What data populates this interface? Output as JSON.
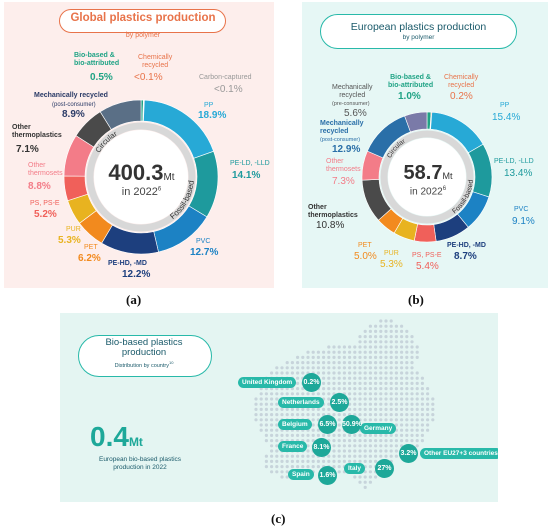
{
  "colors": {
    "brand_orange": "#e8734a",
    "brand_teal": "#28b9a9",
    "text_dark": "#2a3a4a"
  },
  "panel_a": {
    "title": "Global plastics production",
    "subtitle": "by polymer",
    "center_value": "400.3",
    "center_unit": "Mt",
    "center_sub": "in 2022",
    "center_sup": "6",
    "ring_labels": {
      "circular": "Circular",
      "fossil": "Fossil-based"
    },
    "caption": "(a)",
    "labels": {
      "biobased": "Bio-based &\nbio-attributed",
      "biobased_val": "0.5%",
      "chem": "Chemically\nrecycled",
      "chem_val": "<0.1%",
      "carbon": "Carbon-captured",
      "carbon_val": "<0.1%",
      "mech": "Mechanically recycled",
      "mech_sub": "(post-consumer)",
      "mech_val": "8.9%",
      "pp": "PP",
      "pp_val": "18.9%",
      "other_tp": "Other\nthermoplastics",
      "other_tp_val": "7.1%",
      "other_ts": "Other\nthermosets",
      "other_ts_val": "8.8%",
      "pell": "PE-LD, -LLD",
      "pell_val": "14.1%",
      "ps": "PS, PS-E",
      "ps_val": "5.2%",
      "pur": "PUR",
      "pur_val": "5.3%",
      "pet": "PET",
      "pet_val": "6.2%",
      "pvc": "PVC",
      "pvc_val": "12.7%",
      "pehd": "PE-HD, -MD",
      "pehd_val": "12.2%"
    }
  },
  "panel_b": {
    "title": "European plastics production",
    "subtitle": "by polymer",
    "center_value": "58.7",
    "center_unit": "Mt",
    "center_sub": "in 2022",
    "center_sup": "6",
    "ring_labels": {
      "circular": "Circular",
      "fossil": "Fossil-based"
    },
    "caption": "(b)",
    "labels": {
      "biobased": "Bio-based &\nbio-attributed",
      "biobased_val": "1.0%",
      "chem": "Chemically\nrecycled",
      "chem_val": "0.2%",
      "mech_pre": "Mechanically\nrecycled",
      "mech_pre_sub": "(pre-consumer)",
      "mech_pre_val": "5.6%",
      "pp": "PP",
      "pp_val": "15.4%",
      "mech_post": "Mechanically\nrecycled",
      "mech_post_sub": "(post-consumer)",
      "mech_post_val": "12.9%",
      "pell": "PE-LD, -LLD",
      "pell_val": "13.4%",
      "other_ts": "Other\nthermosets",
      "other_ts_val": "7.3%",
      "pvc": "PVC",
      "pvc_val": "9.1%",
      "other_tp": "Other\nthermoplastics",
      "other_tp_val": "10.8%",
      "pet": "PET",
      "pet_val": "5.0%",
      "pur": "PUR",
      "pur_val": "5.3%",
      "ps": "PS, PS-E",
      "ps_val": "5.4%",
      "pehd": "PE-HD, -MD",
      "pehd_val": "8.7%"
    }
  },
  "panel_c": {
    "title": "Bio-based plastics\nproduction",
    "subtitle": "Distribution by country",
    "subtitle_sup": "10",
    "big_value": "0.4",
    "big_unit": "Mt",
    "desc": "European bio-based plastics\nproduction in 2022",
    "caption": "(c)"
  },
  "chart_data": [
    {
      "type": "pie",
      "title": "Global plastics production",
      "subtitle": "by polymer",
      "total": "400.3 Mt in 2022",
      "categories": [
        "Bio-based & bio-attributed",
        "Chemically recycled",
        "Carbon-captured",
        "PP",
        "PE-LD, -LLD",
        "PVC",
        "PE-HD, -MD",
        "PET",
        "PUR",
        "PS, PS-E",
        "Other thermosets",
        "Other thermoplastics",
        "Mechanically recycled (post-consumer)"
      ],
      "values": [
        0.5,
        0.1,
        0.1,
        18.9,
        14.1,
        12.7,
        12.2,
        6.2,
        5.3,
        5.2,
        8.8,
        7.1,
        8.9
      ],
      "value_labels": [
        "0.5%",
        "<0.1%",
        "<0.1%",
        "18.9%",
        "14.1%",
        "12.7%",
        "12.2%",
        "6.2%",
        "5.3%",
        "5.2%",
        "8.8%",
        "7.1%",
        "8.9%"
      ],
      "colors": [
        "#1fa385",
        "#e8734a",
        "#b9b9b9",
        "#27a9d6",
        "#1e9a9d",
        "#1c82c4",
        "#1d3f7e",
        "#f28a1e",
        "#e8b320",
        "#f0605a",
        "#f37c88",
        "#4a4a4a",
        "#5a6f86"
      ]
    },
    {
      "type": "pie",
      "title": "European plastics production",
      "subtitle": "by polymer",
      "total": "58.7 Mt in 2022",
      "categories": [
        "Bio-based & bio-attributed",
        "Chemically recycled",
        "PP",
        "PE-LD, -LLD",
        "PVC",
        "PE-HD, -MD",
        "PS, PS-E",
        "PUR",
        "PET",
        "Other thermoplastics",
        "Other thermosets",
        "Mechanically recycled (post-consumer)",
        "Mechanically recycled (pre-consumer)"
      ],
      "values": [
        1.0,
        0.2,
        15.4,
        13.4,
        9.1,
        8.7,
        5.4,
        5.3,
        5.0,
        10.8,
        7.3,
        12.9,
        5.6
      ],
      "value_labels": [
        "1.0%",
        "0.2%",
        "15.4%",
        "13.4%",
        "9.1%",
        "8.7%",
        "5.4%",
        "5.3%",
        "5.0%",
        "10.8%",
        "7.3%",
        "12.9%",
        "5.6%"
      ],
      "colors": [
        "#1fa385",
        "#e8734a",
        "#27a9d6",
        "#1e9a9d",
        "#1c82c4",
        "#1d3f7e",
        "#f0605a",
        "#e8b320",
        "#f28a1e",
        "#4a4a4a",
        "#f37c88",
        "#2a6fa8",
        "#7a7aa8"
      ]
    },
    {
      "type": "bar",
      "title": "Bio-based plastics production",
      "subtitle": "Distribution by country",
      "total": "0.4 Mt",
      "categories": [
        "United Kingdom",
        "Netherlands",
        "Belgium",
        "Germany",
        "France",
        "Italy",
        "Spain",
        "Other EU27+3 countries"
      ],
      "values": [
        0.2,
        2.5,
        6.5,
        50.9,
        8.1,
        27,
        1.6,
        3.2
      ],
      "value_labels": [
        "0.2%",
        "2.5%",
        "6.5%",
        "50.9%",
        "8.1%",
        "27%",
        "1.6%",
        "3.2%"
      ]
    }
  ]
}
